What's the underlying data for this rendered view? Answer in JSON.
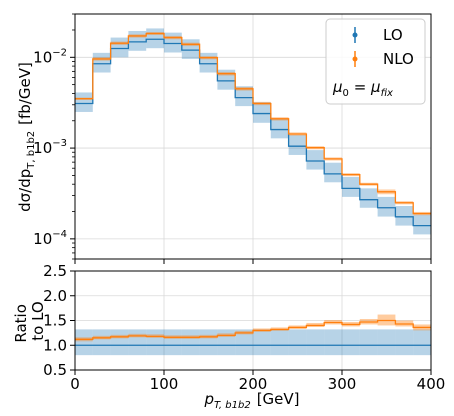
{
  "chart_data": [
    {
      "type": "line",
      "panel": "main",
      "ylabel": "dσ/dp",
      "ylabel_sub": "T, b1b2",
      "ylabel_unit": "[fb/GeV]",
      "yscale": "log",
      "ylim": [
        6e-05,
        0.03
      ],
      "xlim": [
        0,
        400
      ],
      "y_tick_labels": [
        {
          "value": 0.0001,
          "base": "10",
          "exp": "−4"
        },
        {
          "value": 0.001,
          "base": "10",
          "exp": "−3"
        },
        {
          "value": 0.01,
          "base": "10",
          "exp": "−2"
        }
      ],
      "grid": true,
      "legend_placement": "top-right",
      "bin_edges": [
        0,
        20,
        40,
        60,
        80,
        100,
        120,
        140,
        160,
        180,
        200,
        220,
        240,
        260,
        280,
        300,
        320,
        340,
        360,
        380,
        400
      ],
      "series": [
        {
          "name": "LO",
          "color": "#1f77b4",
          "values": [
            0.0031,
            0.0085,
            0.0125,
            0.0148,
            0.0158,
            0.0142,
            0.012,
            0.0085,
            0.0055,
            0.0036,
            0.0024,
            0.0016,
            0.00105,
            0.00072,
            0.00052,
            0.00036,
            0.00027,
            0.00022,
            0.000175,
            0.00014
          ],
          "band_low": [
            0.0025,
            0.0068,
            0.01,
            0.0118,
            0.0126,
            0.0113,
            0.0096,
            0.0068,
            0.0044,
            0.0029,
            0.0019,
            0.00128,
            0.00084,
            0.00058,
            0.00042,
            0.00029,
            0.00022,
            0.000176,
            0.00014,
            0.000112
          ],
          "band_high": [
            0.0041,
            0.0112,
            0.0165,
            0.0195,
            0.0208,
            0.0187,
            0.0158,
            0.0112,
            0.0073,
            0.0048,
            0.0032,
            0.0021,
            0.00139,
            0.00095,
            0.00069,
            0.00048,
            0.00036,
            0.00029,
            0.00023,
            0.000185
          ]
        },
        {
          "name": "NLO",
          "color": "#ff7f0e",
          "values": [
            0.0035,
            0.0096,
            0.0143,
            0.0172,
            0.0183,
            0.0165,
            0.0139,
            0.0099,
            0.0066,
            0.0045,
            0.0031,
            0.0021,
            0.00143,
            0.00101,
            0.00076,
            0.00051,
            0.0004,
            0.00033,
            0.00025,
            0.00019
          ],
          "band_low": [
            0.0034,
            0.0092,
            0.0137,
            0.0165,
            0.0176,
            0.0158,
            0.0133,
            0.0095,
            0.0063,
            0.0043,
            0.00297,
            0.00201,
            0.00137,
            0.00097,
            0.00073,
            0.00049,
            0.000385,
            0.00031,
            0.00024,
            0.000182
          ],
          "band_high": [
            0.0036,
            0.01,
            0.0149,
            0.0179,
            0.019,
            0.0172,
            0.0145,
            0.0103,
            0.0069,
            0.0047,
            0.00323,
            0.00219,
            0.00149,
            0.00105,
            0.00079,
            0.00053,
            0.000415,
            0.00035,
            0.00026,
            0.000198
          ]
        }
      ],
      "annotation": {
        "lhs": "μ",
        "lhs_sub": "0",
        "eq": " = ",
        "rhs": "μ",
        "rhs_sub": "fix"
      }
    },
    {
      "type": "line",
      "panel": "ratio",
      "ylabel_line1": "Ratio",
      "ylabel_line2": "to LO",
      "xlabel": "p",
      "xlabel_sub": "T, b1b2",
      "xlabel_unit": "[GeV]",
      "ylim": [
        0.5,
        2.5
      ],
      "xlim": [
        0,
        400
      ],
      "y_ticks": [
        0.5,
        1.0,
        1.5,
        2.0,
        2.5
      ],
      "y_tick_labels": [
        "0.5",
        "1.0",
        "1.5",
        "2.0",
        "2.5"
      ],
      "x_ticks": [
        0,
        100,
        200,
        300,
        400
      ],
      "x_tick_labels": [
        "0",
        "100",
        "200",
        "300",
        "400"
      ],
      "grid": true,
      "lo_ratio": 1.0,
      "lo_band_low": [
        0.8,
        0.8,
        0.8,
        0.8,
        0.8,
        0.8,
        0.8,
        0.8,
        0.8,
        0.8,
        0.8,
        0.8,
        0.8,
        0.8,
        0.8,
        0.8,
        0.8,
        0.8,
        0.8,
        0.8
      ],
      "lo_band_high": [
        1.32,
        1.32,
        1.32,
        1.32,
        1.32,
        1.32,
        1.32,
        1.32,
        1.32,
        1.32,
        1.32,
        1.32,
        1.32,
        1.32,
        1.32,
        1.32,
        1.32,
        1.32,
        1.32,
        1.32
      ],
      "nlo_ratio": [
        1.12,
        1.15,
        1.17,
        1.19,
        1.18,
        1.16,
        1.16,
        1.17,
        1.2,
        1.25,
        1.3,
        1.32,
        1.36,
        1.4,
        1.46,
        1.42,
        1.47,
        1.5,
        1.43,
        1.36
      ],
      "nlo_band_low": [
        1.08,
        1.12,
        1.14,
        1.16,
        1.15,
        1.13,
        1.13,
        1.14,
        1.17,
        1.22,
        1.27,
        1.29,
        1.33,
        1.37,
        1.42,
        1.38,
        1.42,
        1.4,
        1.38,
        1.3
      ],
      "nlo_band_high": [
        1.16,
        1.19,
        1.21,
        1.23,
        1.22,
        1.2,
        1.2,
        1.21,
        1.24,
        1.29,
        1.34,
        1.36,
        1.4,
        1.45,
        1.51,
        1.47,
        1.53,
        1.62,
        1.5,
        1.42
      ]
    }
  ]
}
